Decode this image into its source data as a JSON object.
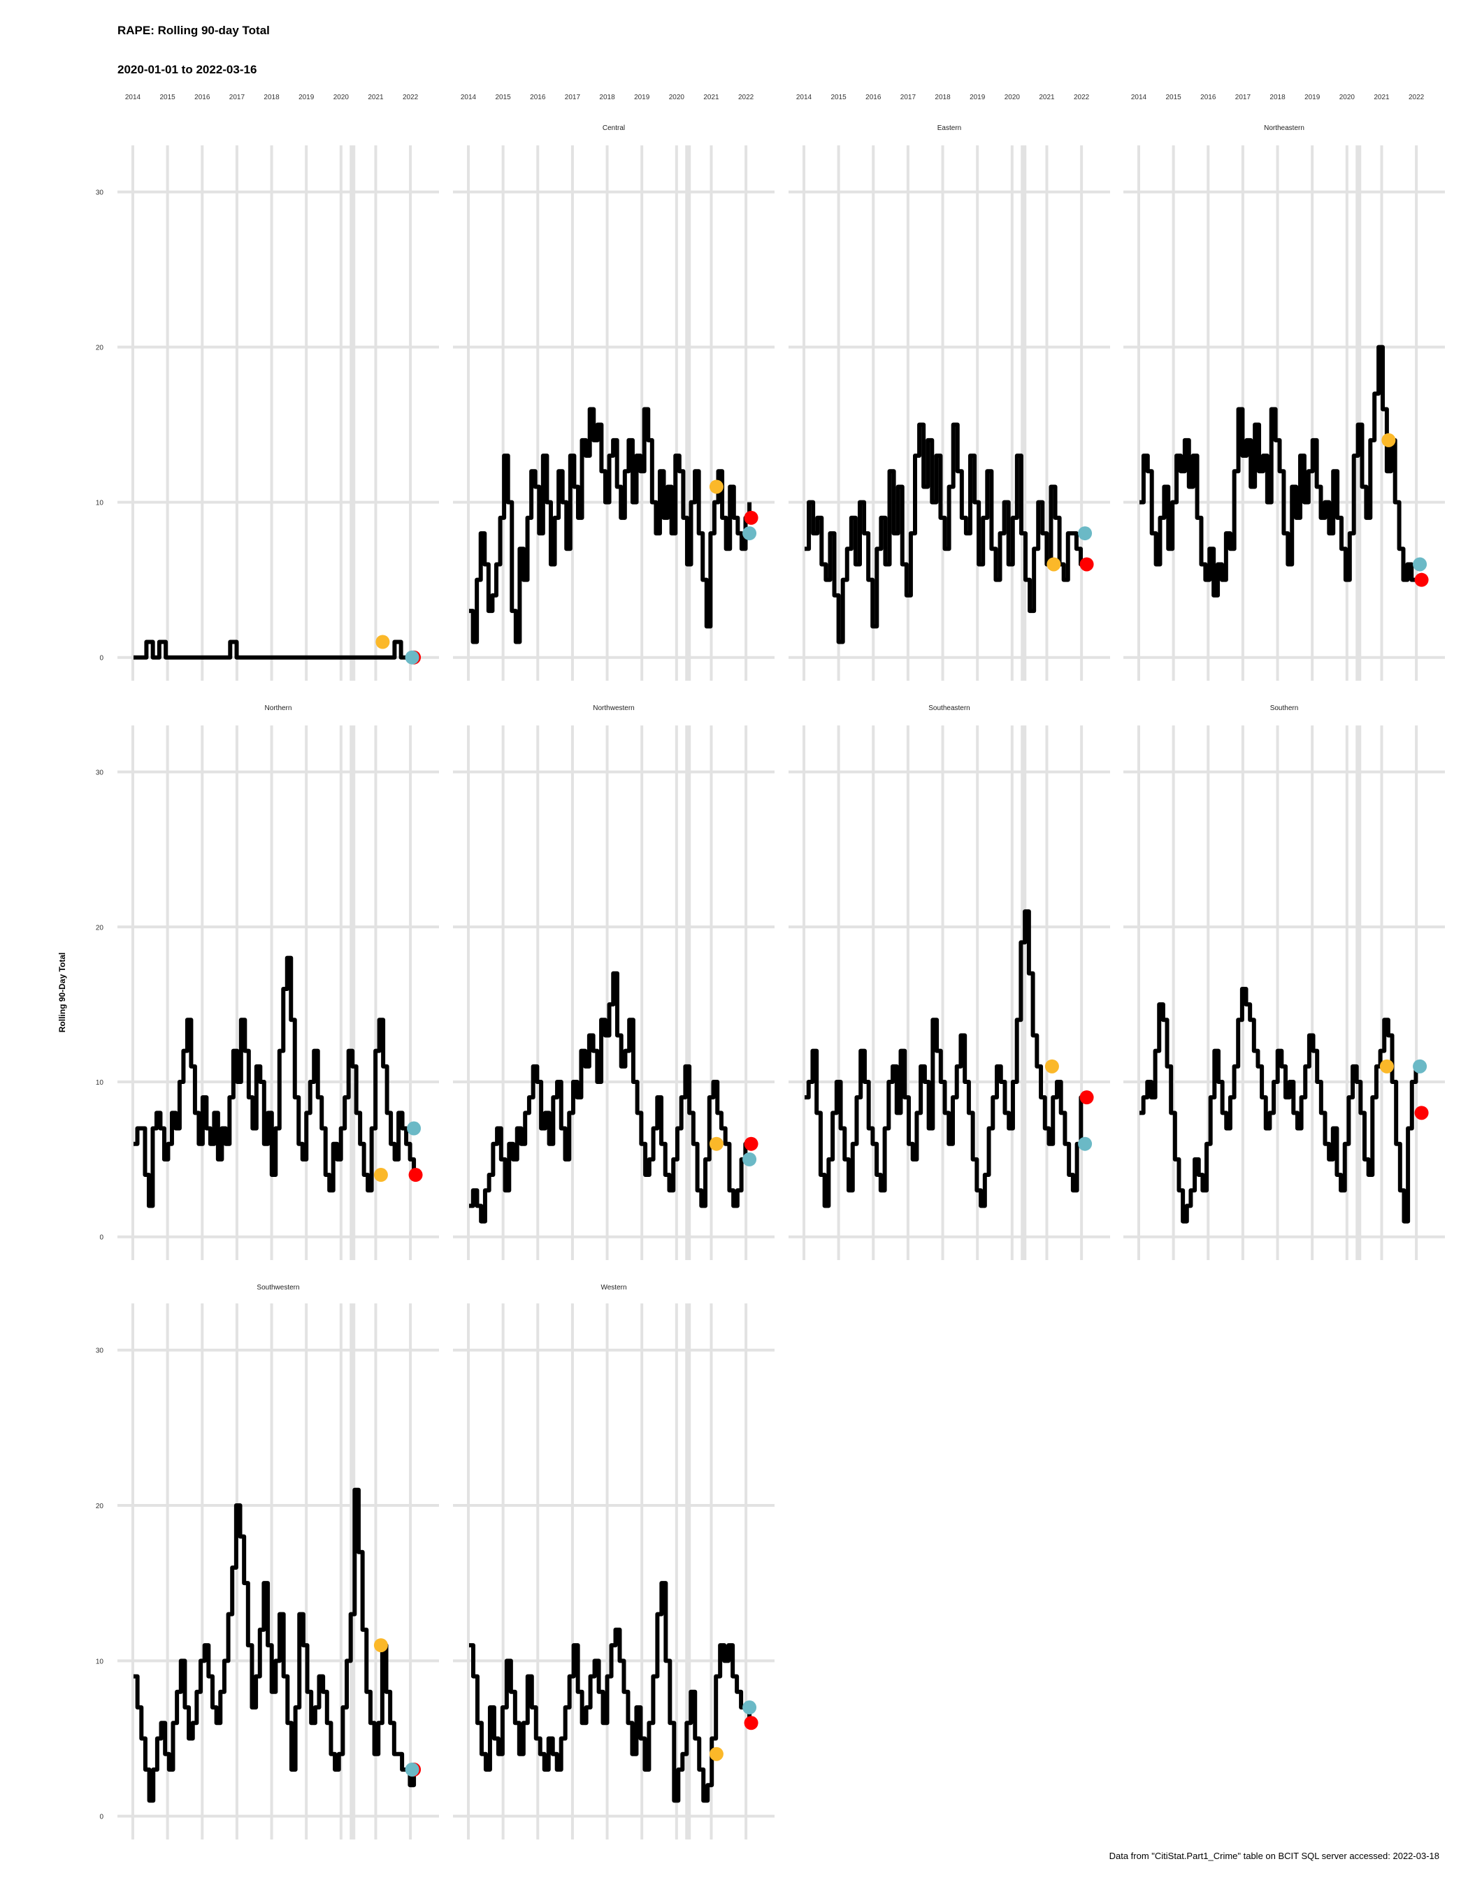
{
  "title": "RAPE: Rolling 90-day Total",
  "subtitle": "2020-01-01 to 2022-03-16",
  "caption": "Data from \"CitiStat.Part1_Crime\" table on BCIT SQL server accessed: 2022-03-18",
  "chart_data": {
    "type": "line",
    "ylabel": "Rolling 90-Day Total",
    "x_ticks": [
      "2014",
      "2015",
      "2016",
      "2017",
      "2018",
      "2019",
      "2020",
      "2021",
      "2022"
    ],
    "x_range": [
      2014.0,
      2022.3
    ],
    "y_ticks": [
      0,
      10,
      20,
      30
    ],
    "y_range": [
      -1.5,
      33
    ],
    "grid": true,
    "marker_colors": {
      "point_a": "#FBB829",
      "point_b": "#6BB9C6",
      "point_c": "#FF0000"
    },
    "panels": [
      {
        "name": "",
        "values": [
          0,
          0,
          0,
          0,
          1,
          1,
          0,
          0,
          1,
          1,
          0,
          0,
          0,
          0,
          0,
          0,
          0,
          0,
          0,
          0,
          0,
          0,
          0,
          0,
          0,
          0,
          0,
          0,
          0,
          0,
          1,
          1,
          0,
          0,
          0,
          0,
          0,
          0,
          0,
          0,
          0,
          0,
          0,
          0,
          0,
          0,
          0,
          0,
          0,
          0,
          0,
          0,
          0,
          0,
          0,
          0,
          0,
          0,
          0,
          0,
          0,
          0,
          0,
          0,
          0,
          0,
          0,
          0,
          0,
          0,
          0,
          0,
          0,
          0,
          0,
          0,
          0,
          0,
          0,
          0,
          0,
          1,
          1,
          0,
          0,
          0,
          0,
          0
        ],
        "markers": [
          {
            "x": 2021.2,
            "y": 1,
            "c": "point_a"
          },
          {
            "x": 2022.1,
            "y": 0,
            "c": "point_c"
          },
          {
            "x": 2022.05,
            "y": 0,
            "c": "point_b"
          }
        ]
      },
      {
        "name": "Central",
        "values": [
          3,
          1,
          5,
          8,
          6,
          3,
          4,
          6,
          9,
          13,
          10,
          3,
          1,
          7,
          5,
          9,
          12,
          11,
          8,
          13,
          10,
          6,
          9,
          12,
          10,
          7,
          13,
          11,
          9,
          14,
          13,
          16,
          14,
          15,
          12,
          10,
          13,
          14,
          11,
          9,
          12,
          14,
          10,
          13,
          12,
          16,
          14,
          10,
          8,
          12,
          9,
          11,
          8,
          13,
          12,
          9,
          6,
          10,
          12,
          8,
          5,
          2,
          8,
          10,
          12,
          9,
          7,
          11,
          9,
          8,
          7,
          9,
          10
        ],
        "markers": [
          {
            "x": 2021.15,
            "y": 11,
            "c": "point_a"
          },
          {
            "x": 2022.15,
            "y": 9,
            "c": "point_c"
          },
          {
            "x": 2022.1,
            "y": 8,
            "c": "point_b"
          }
        ]
      },
      {
        "name": "Eastern",
        "values": [
          7,
          10,
          8,
          9,
          6,
          5,
          8,
          4,
          1,
          5,
          7,
          9,
          6,
          10,
          8,
          5,
          2,
          7,
          9,
          6,
          12,
          8,
          11,
          6,
          4,
          8,
          13,
          15,
          11,
          14,
          10,
          13,
          9,
          7,
          11,
          15,
          12,
          9,
          8,
          13,
          10,
          6,
          9,
          12,
          7,
          5,
          8,
          10,
          6,
          9,
          13,
          8,
          5,
          3,
          7,
          10,
          8,
          6,
          11,
          9,
          6,
          5,
          8,
          8,
          7,
          6,
          6
        ],
        "markers": [
          {
            "x": 2021.2,
            "y": 6,
            "c": "point_a"
          },
          {
            "x": 2022.15,
            "y": 6,
            "c": "point_c"
          },
          {
            "x": 2022.1,
            "y": 8,
            "c": "point_b"
          }
        ]
      },
      {
        "name": "Northeastern",
        "values": [
          10,
          13,
          12,
          8,
          6,
          9,
          11,
          7,
          10,
          13,
          12,
          14,
          11,
          13,
          9,
          6,
          5,
          7,
          4,
          6,
          5,
          8,
          7,
          12,
          16,
          13,
          14,
          11,
          15,
          12,
          13,
          10,
          16,
          14,
          12,
          8,
          6,
          11,
          9,
          13,
          10,
          12,
          14,
          11,
          9,
          10,
          8,
          12,
          9,
          7,
          5,
          8,
          13,
          15,
          11,
          9,
          14,
          17,
          20,
          16,
          12,
          14,
          10,
          7,
          5,
          6,
          5,
          5,
          5
        ],
        "markers": [
          {
            "x": 2021.2,
            "y": 14,
            "c": "point_a"
          },
          {
            "x": 2022.15,
            "y": 5,
            "c": "point_c"
          },
          {
            "x": 2022.1,
            "y": 6,
            "c": "point_b"
          }
        ]
      },
      {
        "name": "Northern",
        "values": [
          6,
          7,
          7,
          4,
          2,
          7,
          8,
          7,
          5,
          6,
          8,
          7,
          10,
          12,
          14,
          11,
          8,
          6,
          9,
          7,
          6,
          8,
          5,
          7,
          6,
          9,
          12,
          10,
          14,
          12,
          9,
          7,
          11,
          10,
          6,
          8,
          4,
          7,
          12,
          16,
          18,
          14,
          9,
          6,
          5,
          8,
          10,
          12,
          9,
          7,
          4,
          3,
          6,
          5,
          7,
          9,
          12,
          11,
          8,
          6,
          4,
          3,
          7,
          12,
          14,
          11,
          8,
          6,
          5,
          8,
          7,
          6,
          5,
          4
        ],
        "markers": [
          {
            "x": 2021.15,
            "y": 4,
            "c": "point_a"
          },
          {
            "x": 2022.15,
            "y": 4,
            "c": "point_c"
          },
          {
            "x": 2022.1,
            "y": 7,
            "c": "point_b"
          }
        ]
      },
      {
        "name": "Northwestern",
        "values": [
          2,
          3,
          2,
          1,
          3,
          4,
          6,
          7,
          5,
          3,
          6,
          5,
          7,
          6,
          8,
          9,
          11,
          10,
          7,
          8,
          6,
          9,
          10,
          7,
          5,
          8,
          10,
          9,
          12,
          11,
          13,
          12,
          10,
          14,
          13,
          15,
          17,
          13,
          11,
          12,
          14,
          10,
          8,
          6,
          4,
          5,
          7,
          9,
          6,
          4,
          3,
          5,
          7,
          9,
          11,
          8,
          6,
          3,
          2,
          5,
          9,
          10,
          8,
          7,
          6,
          3,
          2,
          3,
          5,
          6,
          6
        ],
        "markers": [
          {
            "x": 2021.15,
            "y": 6,
            "c": "point_a"
          },
          {
            "x": 2022.15,
            "y": 6,
            "c": "point_c"
          },
          {
            "x": 2022.1,
            "y": 5,
            "c": "point_b"
          }
        ]
      },
      {
        "name": "Southeastern",
        "values": [
          9,
          10,
          12,
          8,
          4,
          2,
          5,
          8,
          10,
          7,
          5,
          3,
          6,
          9,
          12,
          10,
          7,
          6,
          4,
          3,
          7,
          10,
          11,
          8,
          12,
          9,
          6,
          5,
          8,
          11,
          10,
          7,
          14,
          12,
          10,
          8,
          6,
          9,
          11,
          13,
          10,
          8,
          5,
          3,
          2,
          4,
          7,
          9,
          11,
          10,
          8,
          7,
          10,
          14,
          19,
          21,
          17,
          13,
          11,
          9,
          7,
          6,
          9,
          10,
          8,
          6,
          4,
          3,
          6,
          9,
          9
        ],
        "markers": [
          {
            "x": 2021.15,
            "y": 11,
            "c": "point_a"
          },
          {
            "x": 2022.15,
            "y": 9,
            "c": "point_c"
          },
          {
            "x": 2022.1,
            "y": 6,
            "c": "point_b"
          }
        ]
      },
      {
        "name": "Southern",
        "values": [
          8,
          9,
          10,
          9,
          12,
          15,
          14,
          11,
          8,
          5,
          3,
          1,
          2,
          3,
          5,
          4,
          3,
          6,
          9,
          12,
          10,
          8,
          7,
          9,
          11,
          14,
          16,
          15,
          14,
          12,
          11,
          9,
          7,
          8,
          10,
          12,
          11,
          9,
          10,
          8,
          7,
          9,
          11,
          13,
          12,
          10,
          8,
          6,
          5,
          7,
          4,
          3,
          6,
          9,
          11,
          10,
          8,
          5,
          4,
          9,
          11,
          12,
          14,
          13,
          10,
          6,
          3,
          1,
          7,
          10,
          11,
          11
        ],
        "markers": [
          {
            "x": 2021.15,
            "y": 11,
            "c": "point_a"
          },
          {
            "x": 2022.15,
            "y": 8,
            "c": "point_c"
          },
          {
            "x": 2022.1,
            "y": 11,
            "c": "point_b"
          }
        ]
      },
      {
        "name": "Southwestern",
        "values": [
          9,
          7,
          5,
          3,
          1,
          3,
          5,
          6,
          4,
          3,
          6,
          8,
          10,
          7,
          5,
          6,
          8,
          10,
          11,
          9,
          7,
          6,
          8,
          10,
          13,
          16,
          20,
          18,
          15,
          11,
          7,
          9,
          12,
          15,
          11,
          8,
          10,
          13,
          9,
          6,
          3,
          7,
          13,
          11,
          8,
          6,
          7,
          9,
          8,
          6,
          4,
          3,
          4,
          7,
          10,
          13,
          21,
          17,
          12,
          8,
          6,
          4,
          6,
          11,
          8,
          6,
          4,
          4,
          3,
          3,
          2,
          3
        ],
        "markers": [
          {
            "x": 2021.15,
            "y": 11,
            "c": "point_a"
          },
          {
            "x": 2022.1,
            "y": 3,
            "c": "point_c"
          },
          {
            "x": 2022.05,
            "y": 3,
            "c": "point_b"
          }
        ]
      },
      {
        "name": "Western",
        "values": [
          11,
          9,
          6,
          4,
          3,
          7,
          5,
          4,
          7,
          10,
          8,
          6,
          4,
          6,
          9,
          7,
          5,
          4,
          3,
          5,
          4,
          3,
          5,
          7,
          9,
          11,
          8,
          6,
          7,
          9,
          10,
          8,
          6,
          9,
          11,
          12,
          10,
          8,
          6,
          4,
          7,
          5,
          3,
          6,
          9,
          13,
          15,
          10,
          6,
          1,
          3,
          4,
          6,
          8,
          5,
          3,
          1,
          2,
          5,
          9,
          11,
          10,
          11,
          9,
          8,
          7,
          7,
          6
        ],
        "markers": [
          {
            "x": 2021.15,
            "y": 4,
            "c": "point_a"
          },
          {
            "x": 2022.15,
            "y": 6,
            "c": "point_c"
          },
          {
            "x": 2022.1,
            "y": 7,
            "c": "point_b"
          }
        ]
      }
    ]
  }
}
